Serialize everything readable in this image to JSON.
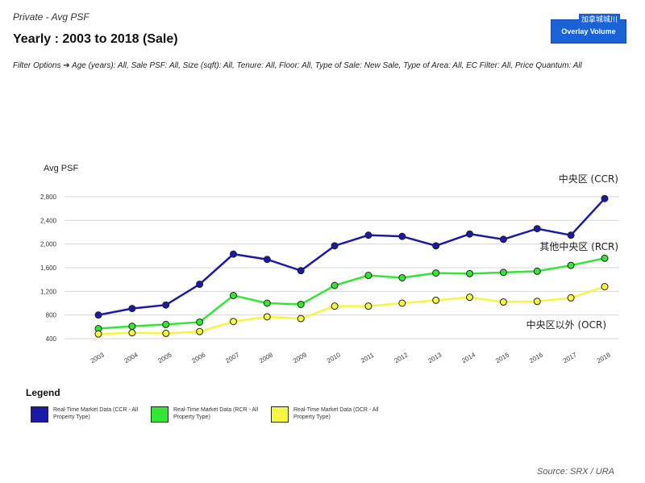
{
  "header": {
    "subtitle": "Private - Avg PSF",
    "title": "Yearly : 2003 to 2018 (Sale)",
    "filters": "Filter Options ➔ Age (years): All, Sale PSF: All, Size (sqft): All, Tenure: All, Floor: All, Type of Sale: New Sale, Type of Area: All, EC Filter: All, Price Quantum: All"
  },
  "overlay_button": {
    "label": "Overlay Volume",
    "tag": "加拿城城川"
  },
  "legend": {
    "title": "Legend",
    "items": [
      {
        "label": "Real-Time Market Data (CCR - All Property Type)",
        "color": "#1a1aa8"
      },
      {
        "label": "Real-Time Market Data (RCR - All Property Type)",
        "color": "#33e633"
      },
      {
        "label": "Real-Time Market Data (OCR - All Property Type)",
        "color": "#f5f542"
      }
    ]
  },
  "source": "Source: SRX / URA",
  "chart_data": {
    "type": "line",
    "ylabel": "Avg PSF",
    "xlabel": "",
    "categories": [
      "2003",
      "2004",
      "2005",
      "2006",
      "2007",
      "2008",
      "2009",
      "2010",
      "2011",
      "2012",
      "2013",
      "2014",
      "2015",
      "2016",
      "2017",
      "2018"
    ],
    "yticks": [
      400,
      800,
      1200,
      1600,
      2000,
      2400,
      2800
    ],
    "ylim": [
      400,
      2800
    ],
    "grid": true,
    "series": [
      {
        "name": "中央区 (CCR)",
        "color": "#1a1aa8",
        "values": [
          800,
          910,
          970,
          1320,
          1830,
          1740,
          1550,
          1970,
          2150,
          2130,
          1970,
          2170,
          2080,
          2260,
          2150,
          2770
        ]
      },
      {
        "name": "其他中央区 (RCR)",
        "color": "#33e633",
        "values": [
          570,
          610,
          640,
          680,
          1130,
          1000,
          980,
          1300,
          1470,
          1430,
          1510,
          1500,
          1520,
          1540,
          1640,
          1760
        ]
      },
      {
        "name": "中央区以外 (OCR)",
        "color": "#f5f542",
        "values": [
          480,
          500,
          490,
          520,
          690,
          770,
          740,
          950,
          950,
          1000,
          1050,
          1100,
          1020,
          1030,
          1090,
          1280
        ]
      }
    ]
  }
}
